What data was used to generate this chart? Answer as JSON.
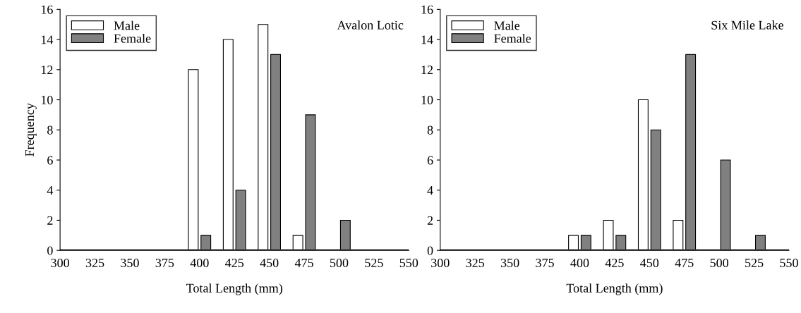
{
  "chart_data": [
    {
      "type": "bar",
      "title": "Avalon Lotic",
      "xlabel": "Total Length (mm)",
      "ylabel": "Frequency",
      "x": [
        400,
        425,
        450,
        475,
        500
      ],
      "series": [
        {
          "name": "Male",
          "color": "#ffffff",
          "values": [
            12,
            14,
            15,
            1,
            null
          ]
        },
        {
          "name": "Female",
          "color": "#808080",
          "values": [
            1,
            4,
            13,
            9,
            2
          ]
        }
      ],
      "xlim": [
        300,
        550
      ],
      "xticks": [
        300,
        325,
        350,
        375,
        400,
        425,
        450,
        475,
        500,
        525,
        550
      ],
      "ylim": [
        0,
        16
      ],
      "yticks": [
        0,
        2,
        4,
        6,
        8,
        10,
        12,
        14,
        16
      ],
      "legend": "top left",
      "grid": false
    },
    {
      "type": "bar",
      "title": "Six Mile Lake",
      "xlabel": "Total Length (mm)",
      "x": [
        400,
        425,
        450,
        475,
        500,
        525
      ],
      "series": [
        {
          "name": "Male",
          "color": "#ffffff",
          "values": [
            1,
            2,
            10,
            2,
            null,
            null
          ]
        },
        {
          "name": "Female",
          "color": "#808080",
          "values": [
            1,
            1,
            8,
            13,
            6,
            1
          ]
        }
      ],
      "xlim": [
        300,
        550
      ],
      "xticks": [
        300,
        325,
        350,
        375,
        400,
        425,
        450,
        475,
        500,
        525,
        550
      ],
      "ylim": [
        0,
        16
      ],
      "yticks": [
        0,
        2,
        4,
        6,
        8,
        10,
        12,
        14,
        16
      ],
      "legend": "top left",
      "grid": false
    }
  ]
}
